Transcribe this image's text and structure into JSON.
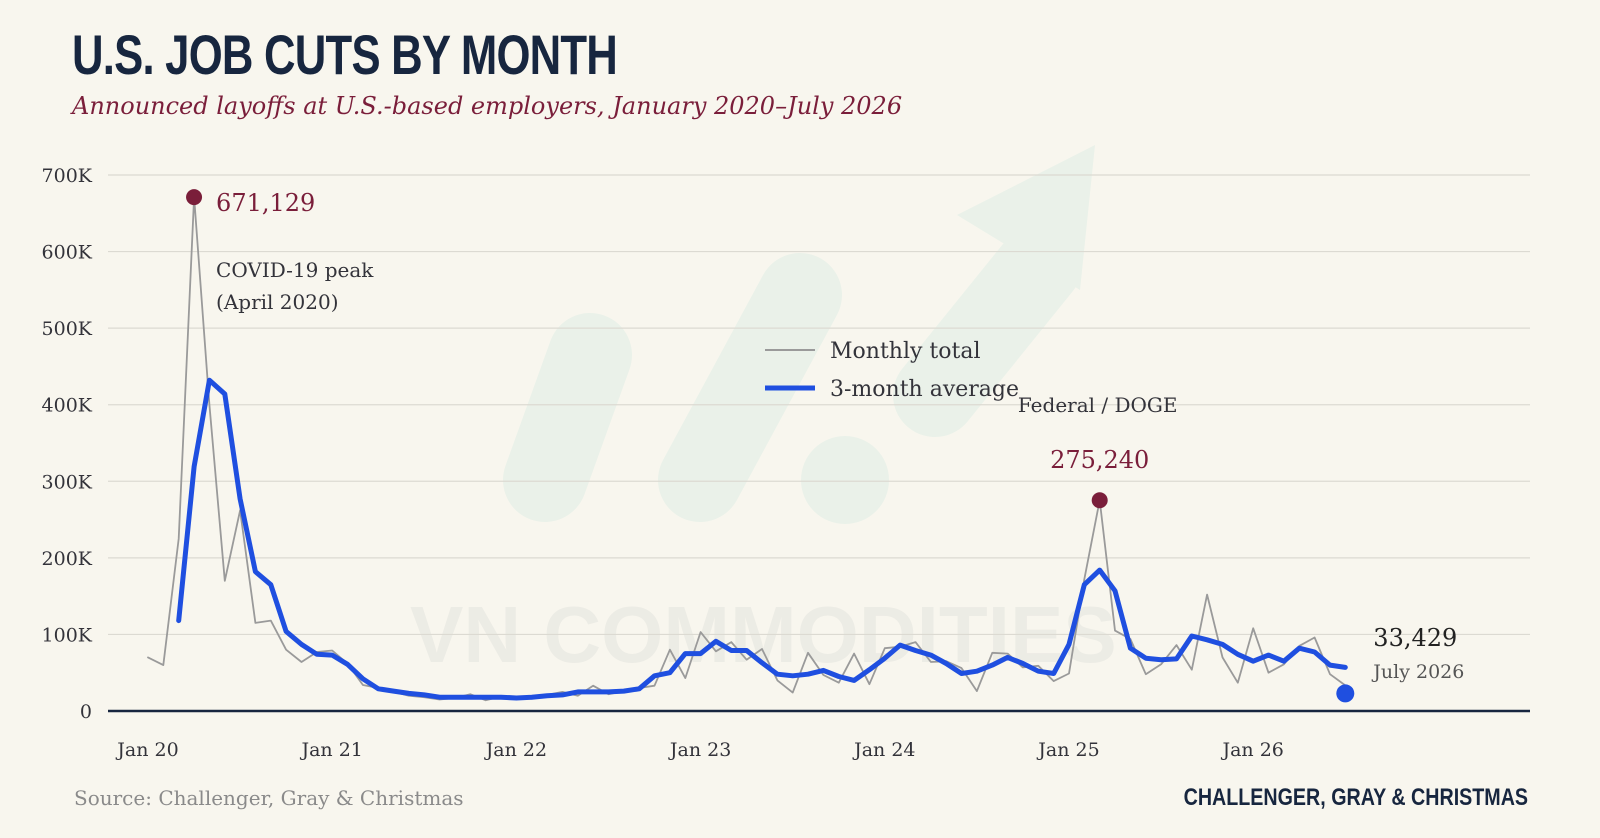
{
  "header": {
    "title": "U.S. JOB CUTS BY MONTH",
    "subtitle": "Announced layoffs at U.S.-based employers, January 2020–July 2026"
  },
  "footer": {
    "source": "Source: Challenger, Gray & Christmas",
    "brand": "CHALLENGER, GRAY & CHRISTMAS"
  },
  "watermark": {
    "text": "VN COMMODITIES"
  },
  "colors": {
    "background": "#f8f6ee",
    "monthly": "#9a9a9a",
    "average": "#1f4fe0",
    "highlight": "#7a1e3a",
    "title": "#17263f",
    "watermark": "#dfeee5"
  },
  "chart_data": {
    "type": "line",
    "title": "U.S. JOB CUTS BY MONTH",
    "subtitle": "Announced layoffs at U.S.-based employers, January 2020–July 2026",
    "xlabel": "",
    "ylabel": "",
    "ylim": [
      0,
      700000
    ],
    "yticks": [
      0,
      100000,
      200000,
      300000,
      400000,
      500000,
      600000,
      700000
    ],
    "ytick_labels": [
      "0",
      "100K",
      "200K",
      "300K",
      "400K",
      "500K",
      "600K",
      "700K"
    ],
    "xtick_labels": [
      "Jan 20",
      "Jan 21",
      "Jan 22",
      "Jan 23",
      "Jan 24",
      "Jan 25",
      "Jan 26"
    ],
    "grid": true,
    "legend_position": "center",
    "x_start": "2020-01",
    "series": [
      {
        "name": "Monthly total",
        "values": [
          70000,
          60000,
          225000,
          671129,
          400000,
          170000,
          262000,
          115000,
          118000,
          80000,
          64000,
          77000,
          79000,
          62000,
          34000,
          30000,
          25000,
          20000,
          18000,
          15000,
          17000,
          22000,
          14000,
          19000,
          19000,
          16000,
          21000,
          25000,
          20000,
          33000,
          22000,
          26000,
          30000,
          33000,
          80000,
          43000,
          103000,
          78000,
          90000,
          67000,
          81000,
          40000,
          24000,
          76000,
          47000,
          37000,
          75000,
          35000,
          82000,
          84000,
          90000,
          64000,
          65000,
          56000,
          26000,
          76000,
          75000,
          57000,
          59000,
          39000,
          49000,
          172000,
          275240,
          105000,
          94000,
          48000,
          61000,
          86000,
          54000,
          152000,
          70000,
          37000,
          108000,
          50000,
          61000,
          85000,
          96000,
          48000,
          33429
        ],
        "color": "#9a9a9a"
      },
      {
        "name": "3-month average",
        "x_offset": 2,
        "values": [
          118000,
          319000,
          432000,
          414000,
          277000,
          182000,
          165000,
          104000,
          87000,
          74000,
          73000,
          61000,
          42000,
          29000,
          26000,
          23000,
          21000,
          18000,
          18000,
          18000,
          18000,
          18000,
          17000,
          18000,
          20000,
          21000,
          25000,
          25000,
          25000,
          26000,
          29000,
          46000,
          50000,
          75000,
          75000,
          91000,
          79000,
          79000,
          63000,
          48000,
          46000,
          48000,
          53000,
          45000,
          40000,
          54000,
          69000,
          86000,
          79000,
          73000,
          62000,
          49000,
          52000,
          60000,
          70000,
          62000,
          52000,
          49000,
          87000,
          165000,
          184000,
          157000,
          82000,
          69000,
          67000,
          68000,
          98000,
          93000,
          87000,
          74000,
          65000,
          73000,
          65000,
          82000,
          77000,
          60000,
          57000
        ],
        "color": "#1f4fe0"
      }
    ],
    "annotations": {
      "peak_value": "671,129",
      "peak_label_1": "COVID-19 peak",
      "peak_label_2": "(April 2020)",
      "doge_label": "Federal / DOGE",
      "doge_value": "275,240",
      "last_value": "33,429",
      "last_label": "July 2026"
    }
  }
}
